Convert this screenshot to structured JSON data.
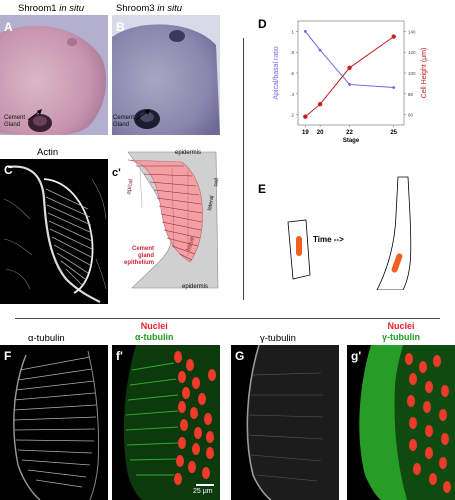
{
  "panels": {
    "A": {
      "letter": "A",
      "title_gene": "Shroom1",
      "title_suffix": "in situ",
      "callout": "Cement\nGland"
    },
    "B": {
      "letter": "B",
      "title_gene": "Shroom3",
      "title_suffix": "in situ",
      "callout": "Cement\nGland"
    },
    "C": {
      "letter": "C",
      "title": "Actin"
    },
    "C_prime": {
      "letter": "c'",
      "labels": {
        "epidermis_top": "epidermis",
        "epidermis_bottom": "epidermis",
        "apical": "apical",
        "basal": "basal",
        "lateral": "lateral",
        "cell": "cell",
        "gland_line1": "Cement",
        "gland_line2": "gland",
        "gland_line3": "epithelium"
      }
    },
    "D": {
      "letter": "D"
    },
    "E": {
      "letter": "E",
      "time_label": "Time -->"
    },
    "F": {
      "letter": "F",
      "title": "α-tubulin"
    },
    "F_prime": {
      "letter": "f'",
      "title_line1": "Nuclei",
      "title_line2": "α-tubulin",
      "scale_bar": "25 μm"
    },
    "G": {
      "letter": "G",
      "title": "γ-tubulin"
    },
    "G_prime": {
      "letter": "g'",
      "title_line1": "Nuclei",
      "title_line2": "γ-tubulin"
    }
  },
  "colors": {
    "nuclei_red": "#e8202a",
    "tubulin_green": "#1e9e1e",
    "apical_blue": "#6a6ae0",
    "cell_height_red": "#c41e1e",
    "gland_pink": "#f2a0a4",
    "epidermis_gray": "#d0d0d0",
    "nucleus_orange": "#f06020"
  },
  "chart_data": {
    "type": "line",
    "xlabel": "Stage",
    "x": [
      19,
      20,
      22,
      25
    ],
    "y_left_label": "Apical/basal ratio",
    "y_right_label": "Cell Height (μm)",
    "y_left_ticks": [
      "1",
      ".8",
      ".6",
      ".4",
      ".2"
    ],
    "y_right_ticks": [
      "140",
      "120",
      "100",
      "80",
      "60"
    ],
    "y_left_range": [
      0.1,
      1.1
    ],
    "y_right_range": [
      50,
      150
    ],
    "series": [
      {
        "name": "Apical/basal ratio",
        "axis": "left",
        "color": "#6a6ae0",
        "values": [
          1.0,
          0.82,
          0.49,
          0.46
        ]
      },
      {
        "name": "Cell Height (μm)",
        "axis": "right",
        "color": "#c41e1e",
        "values": [
          58,
          70,
          105,
          135
        ]
      }
    ]
  }
}
